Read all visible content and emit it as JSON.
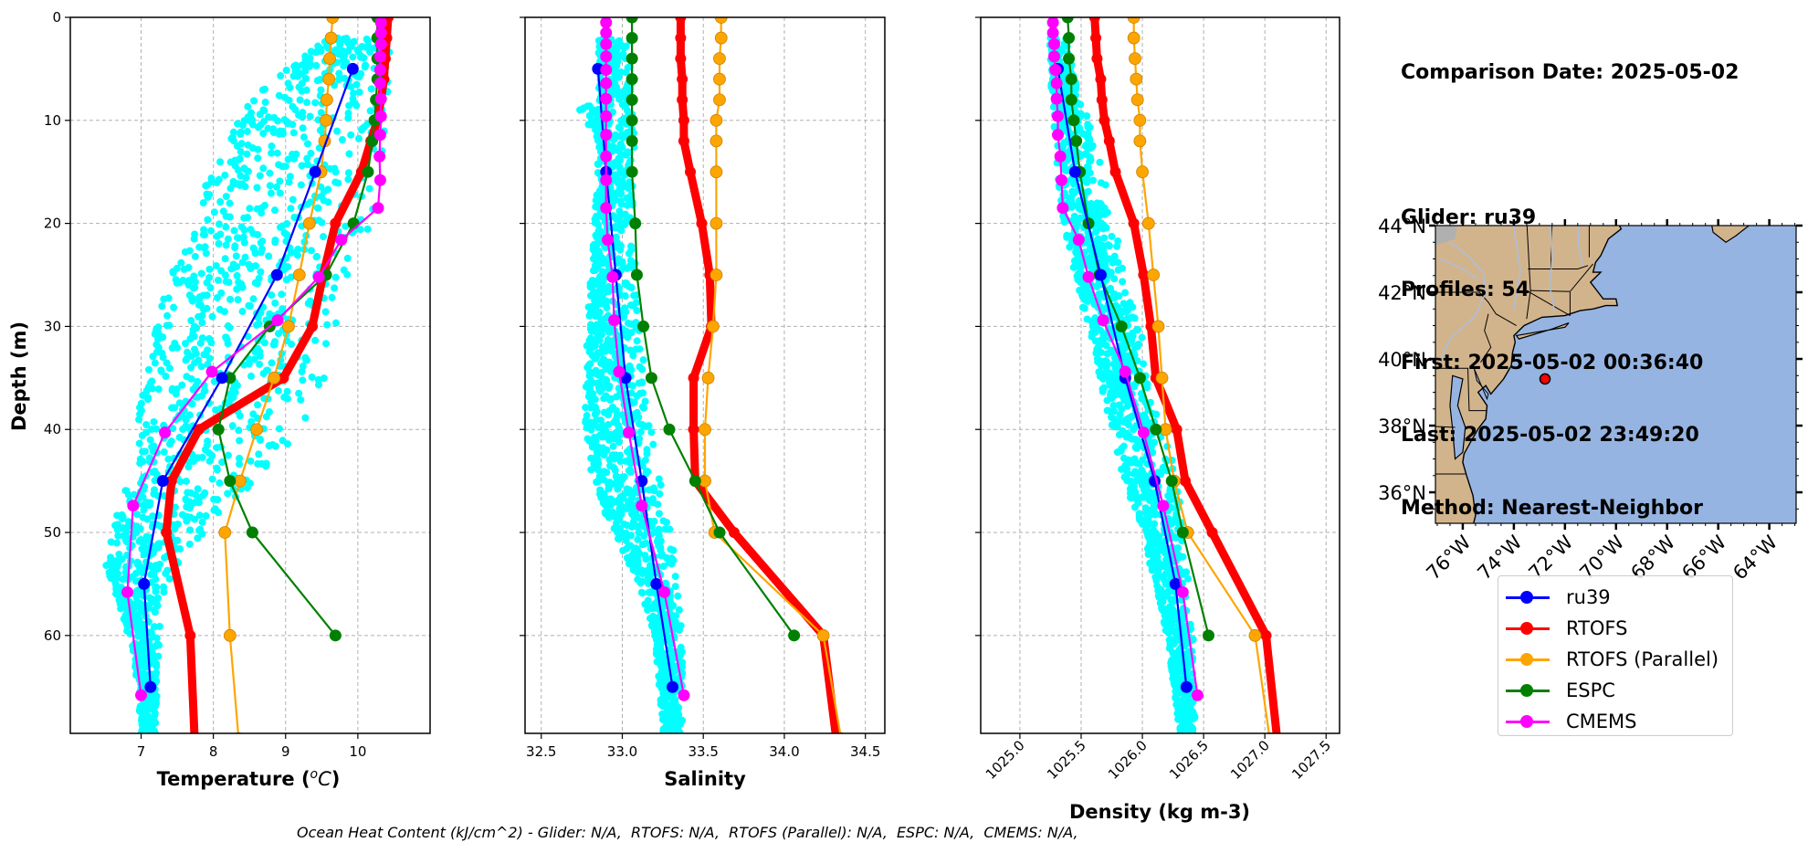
{
  "info": {
    "comparison_date": "Comparison Date: 2025-05-02",
    "glider": "Glider: ru39",
    "profiles": "Profiles: 54",
    "first": "First: 2025-05-02 00:36:40",
    "last": "Last: 2025-05-02 23:49:20",
    "method": "Method: Nearest-Neighbor"
  },
  "footer": "Ocean Heat Content (kJ/cm^2) - Glider: N/A,  RTOFS: N/A,  RTOFS (Parallel): N/A,  ESPC: N/A,  CMEMS: N/A,",
  "legend": [
    {
      "label": "ru39",
      "color": "#0000ff"
    },
    {
      "label": "RTOFS",
      "color": "#ff0000"
    },
    {
      "label": "RTOFS (Parallel)",
      "color": "#ffa500"
    },
    {
      "label": "ESPC",
      "color": "#008000"
    },
    {
      "label": "CMEMS",
      "color": "#ff00ff"
    }
  ],
  "colors": {
    "glider_scatter": "#00ffff",
    "ru39": "#0000ff",
    "RTOFS": "#ff0000",
    "RTOFS (Parallel)": "#ffa500",
    "ESPC": "#008000",
    "CMEMS": "#ff00ff",
    "land": "#d2b48c",
    "ocean": "#96b4e1",
    "lakes": "#b0b0b0"
  },
  "chart_data": [
    {
      "type": "line",
      "id": "temperature",
      "title": "",
      "xlabel": "Temperature (°C)",
      "xlabel_main": "Temperature (",
      "xlabel_unit": "oC",
      "ylabel": "Depth (m)",
      "xlim": [
        6.02,
        11.0
      ],
      "ylim": [
        69.5,
        0
      ],
      "xticks": [
        7,
        8,
        9,
        10
      ],
      "xtick_labels": [
        "7",
        "8",
        "9",
        "10"
      ],
      "yticks": [
        0,
        10,
        20,
        30,
        40,
        50,
        60
      ],
      "ytick_labels": [
        "0",
        "10",
        "20",
        "30",
        "40",
        "50",
        "60"
      ],
      "grid": true,
      "glider_scatter_envelope": [
        [
          2,
          9.6,
          10.45
        ],
        [
          5,
          9.0,
          10.45
        ],
        [
          8,
          8.5,
          10.45
        ],
        [
          12,
          8.2,
          10.4
        ],
        [
          16,
          7.9,
          10.3
        ],
        [
          20,
          7.8,
          10.2
        ],
        [
          25,
          7.4,
          9.95
        ],
        [
          30,
          7.2,
          9.8
        ],
        [
          35,
          7.0,
          9.6
        ],
        [
          40,
          6.9,
          9.3
        ],
        [
          45,
          6.8,
          8.6
        ],
        [
          50,
          6.6,
          7.9
        ],
        [
          53,
          6.5,
          7.6
        ],
        [
          57,
          6.7,
          7.3
        ],
        [
          62,
          6.9,
          7.25
        ],
        [
          69,
          7.0,
          7.2
        ]
      ],
      "series": [
        {
          "name": "ru39",
          "depth": [
            5,
            15,
            25,
            35,
            45,
            55,
            65
          ],
          "values": [
            9.93,
            9.41,
            8.88,
            8.12,
            7.3,
            7.04,
            7.13
          ]
        },
        {
          "name": "RTOFS",
          "depth": [
            0,
            2,
            4,
            6,
            8,
            10,
            12,
            15,
            20,
            25,
            30,
            35,
            40,
            45,
            50,
            60,
            70
          ],
          "values": [
            10.42,
            10.4,
            10.38,
            10.36,
            10.32,
            10.27,
            10.18,
            10.05,
            9.69,
            9.52,
            9.37,
            8.97,
            7.8,
            7.42,
            7.35,
            7.68,
            7.74
          ]
        },
        {
          "name": "RTOFS (Parallel)",
          "depth": [
            0,
            2,
            4,
            6,
            8,
            10,
            12,
            15,
            20,
            25,
            30,
            35,
            40,
            45,
            50,
            60,
            70
          ],
          "values": [
            9.65,
            9.63,
            9.61,
            9.6,
            9.57,
            9.56,
            9.54,
            9.49,
            9.33,
            9.19,
            9.04,
            8.84,
            8.6,
            8.37,
            8.16,
            8.23,
            8.35
          ]
        },
        {
          "name": "ESPC",
          "depth": [
            0,
            2,
            4,
            6,
            8,
            10,
            12,
            15,
            20,
            25,
            30,
            35,
            40,
            45,
            50,
            60
          ],
          "values": [
            10.27,
            10.27,
            10.27,
            10.27,
            10.25,
            10.23,
            10.2,
            10.14,
            9.94,
            9.56,
            8.78,
            8.23,
            8.07,
            8.23,
            8.54,
            9.69
          ]
        },
        {
          "name": "CMEMS",
          "depth": [
            0.5,
            1.5,
            2.6,
            3.8,
            5.1,
            6.4,
            7.9,
            9.6,
            11.4,
            13.5,
            15.8,
            18.5,
            21.6,
            25.2,
            29.4,
            34.4,
            40.3,
            47.4,
            55.8,
            65.8
          ],
          "values": [
            10.32,
            10.32,
            10.32,
            10.31,
            10.31,
            10.31,
            10.32,
            10.32,
            10.31,
            10.3,
            10.31,
            10.28,
            9.77,
            9.46,
            8.89,
            7.98,
            7.33,
            6.89,
            6.81,
            7.0
          ]
        }
      ]
    },
    {
      "type": "line",
      "id": "salinity",
      "xlabel": "Salinity",
      "ylabel": "",
      "xlim": [
        32.4,
        34.62
      ],
      "ylim": [
        69.5,
        0
      ],
      "xticks": [
        32.5,
        33.0,
        33.5,
        34.0,
        34.5
      ],
      "xtick_labels": [
        "32.5",
        "33.0",
        "33.5",
        "34.0",
        "34.5"
      ],
      "yticks": [
        0,
        10,
        20,
        30,
        40,
        50,
        60
      ],
      "grid": true,
      "glider_scatter_envelope": [
        [
          2,
          32.85,
          33.05
        ],
        [
          8,
          32.85,
          33.07
        ],
        [
          9,
          32.73,
          33.07
        ],
        [
          12,
          32.85,
          33.08
        ],
        [
          20,
          32.83,
          33.07
        ],
        [
          30,
          32.78,
          33.12
        ],
        [
          40,
          32.77,
          33.2
        ],
        [
          45,
          32.8,
          33.25
        ],
        [
          50,
          32.95,
          33.3
        ],
        [
          55,
          33.1,
          33.35
        ],
        [
          60,
          33.2,
          33.38
        ],
        [
          69,
          33.25,
          33.37
        ]
      ],
      "series": [
        {
          "name": "ru39",
          "depth": [
            5,
            15,
            25,
            35,
            45,
            55,
            65
          ],
          "values": [
            32.85,
            32.9,
            32.96,
            33.02,
            33.12,
            33.21,
            33.31
          ]
        },
        {
          "name": "RTOFS",
          "depth": [
            0,
            2,
            4,
            6,
            8,
            10,
            12,
            15,
            20,
            25,
            30,
            35,
            40,
            45,
            50,
            60,
            70
          ],
          "values": [
            33.36,
            33.36,
            33.36,
            33.37,
            33.37,
            33.38,
            33.38,
            33.42,
            33.49,
            33.54,
            33.55,
            33.44,
            33.44,
            33.45,
            33.69,
            34.24,
            34.32
          ]
        },
        {
          "name": "RTOFS (Parallel)",
          "depth": [
            0,
            2,
            4,
            6,
            8,
            10,
            12,
            15,
            20,
            25,
            30,
            35,
            40,
            45,
            50,
            60,
            70
          ],
          "values": [
            33.61,
            33.61,
            33.6,
            33.6,
            33.6,
            33.58,
            33.58,
            33.58,
            33.58,
            33.58,
            33.56,
            33.53,
            33.51,
            33.51,
            33.57,
            34.24,
            34.35
          ]
        },
        {
          "name": "ESPC",
          "depth": [
            0,
            2,
            4,
            6,
            8,
            10,
            12,
            15,
            20,
            25,
            30,
            35,
            40,
            45,
            50,
            60
          ],
          "values": [
            33.06,
            33.06,
            33.06,
            33.06,
            33.06,
            33.06,
            33.06,
            33.06,
            33.08,
            33.09,
            33.13,
            33.18,
            33.29,
            33.45,
            33.6,
            34.06
          ]
        },
        {
          "name": "CMEMS",
          "depth": [
            0.5,
            1.5,
            2.6,
            3.8,
            5.1,
            6.4,
            7.9,
            9.6,
            11.4,
            13.5,
            15.8,
            18.5,
            21.6,
            25.2,
            29.4,
            34.4,
            40.3,
            47.4,
            55.8,
            65.8
          ],
          "values": [
            32.9,
            32.9,
            32.9,
            32.9,
            32.9,
            32.9,
            32.9,
            32.9,
            32.9,
            32.9,
            32.9,
            32.9,
            32.91,
            32.94,
            32.95,
            32.98,
            33.04,
            33.12,
            33.26,
            33.38
          ]
        }
      ]
    },
    {
      "type": "line",
      "id": "density",
      "xlabel": "Density (kg m-3)",
      "ylabel": "",
      "xlim": [
        1024.68,
        1027.61
      ],
      "ylim": [
        69.5,
        0
      ],
      "xticks": [
        1025.0,
        1025.5,
        1026.0,
        1026.5,
        1027.0,
        1027.5
      ],
      "xtick_labels": [
        "1025.0",
        "1025.5",
        "1026.0",
        "1026.5",
        "1027.0",
        "1027.5"
      ],
      "xtick_rotation": 45,
      "yticks": [
        0,
        10,
        20,
        30,
        40,
        50,
        60
      ],
      "grid": true,
      "glider_scatter_envelope": [
        [
          2,
          1025.24,
          1025.4
        ],
        [
          8,
          1025.26,
          1025.5
        ],
        [
          12,
          1025.28,
          1025.62
        ],
        [
          20,
          1025.35,
          1025.78
        ],
        [
          25,
          1025.45,
          1025.85
        ],
        [
          30,
          1025.55,
          1026.0
        ],
        [
          35,
          1025.65,
          1026.05
        ],
        [
          40,
          1025.75,
          1026.2
        ],
        [
          45,
          1025.85,
          1026.28
        ],
        [
          50,
          1026.0,
          1026.35
        ],
        [
          60,
          1026.2,
          1026.42
        ],
        [
          69,
          1026.3,
          1026.43
        ]
      ],
      "series": [
        {
          "name": "ru39",
          "depth": [
            5,
            15,
            25,
            35,
            45,
            55,
            65
          ],
          "values": [
            1025.31,
            1025.45,
            1025.66,
            1025.86,
            1026.1,
            1026.27,
            1026.36
          ]
        },
        {
          "name": "RTOFS",
          "depth": [
            0,
            2,
            4,
            6,
            8,
            10,
            12,
            15,
            20,
            25,
            30,
            35,
            40,
            45,
            50,
            60,
            70
          ],
          "values": [
            1025.61,
            1025.62,
            1025.63,
            1025.66,
            1025.67,
            1025.69,
            1025.73,
            1025.78,
            1025.93,
            1026.01,
            1026.07,
            1026.11,
            1026.28,
            1026.35,
            1026.57,
            1027.01,
            1027.1
          ]
        },
        {
          "name": "RTOFS (Parallel)",
          "depth": [
            0,
            2,
            4,
            6,
            8,
            10,
            12,
            15,
            20,
            25,
            30,
            35,
            40,
            45,
            50,
            60,
            70
          ],
          "values": [
            1025.93,
            1025.93,
            1025.94,
            1025.95,
            1025.96,
            1025.98,
            1025.98,
            1026.0,
            1026.05,
            1026.09,
            1026.13,
            1026.16,
            1026.19,
            1026.26,
            1026.37,
            1026.92,
            1027.04
          ]
        },
        {
          "name": "ESPC",
          "depth": [
            0,
            2,
            4,
            6,
            8,
            10,
            12,
            15,
            20,
            25,
            30,
            35,
            40,
            45,
            50,
            60
          ],
          "values": [
            1025.39,
            1025.4,
            1025.4,
            1025.42,
            1025.42,
            1025.44,
            1025.46,
            1025.49,
            1025.56,
            1025.65,
            1025.83,
            1025.98,
            1026.11,
            1026.24,
            1026.33,
            1026.54
          ]
        },
        {
          "name": "CMEMS",
          "depth": [
            0.5,
            1.5,
            2.6,
            3.8,
            5.1,
            6.4,
            7.9,
            9.6,
            11.4,
            13.5,
            15.8,
            18.5,
            21.6,
            25.2,
            29.4,
            34.4,
            40.3,
            47.4,
            55.8,
            65.8
          ],
          "values": [
            1025.27,
            1025.27,
            1025.28,
            1025.28,
            1025.29,
            1025.3,
            1025.3,
            1025.31,
            1025.31,
            1025.33,
            1025.34,
            1025.35,
            1025.48,
            1025.56,
            1025.68,
            1025.86,
            1026.01,
            1026.17,
            1026.33,
            1026.45
          ]
        }
      ]
    },
    {
      "type": "map",
      "id": "location-map",
      "lon_range": [
        -77.07,
        -62.95
      ],
      "lat_range": [
        35.07,
        44.0
      ],
      "lat_ticks": [
        36,
        38,
        40,
        42,
        44
      ],
      "lat_tick_labels": [
        "36°N",
        "38°N",
        "40°N",
        "42°N",
        "44°N"
      ],
      "lon_ticks": [
        -76,
        -74,
        -72,
        -70,
        -68,
        -66,
        -64
      ],
      "lon_tick_labels": [
        "76°W",
        "74°W",
        "72°W",
        "70°W",
        "68°W",
        "66°W",
        "64°W"
      ],
      "glider_position": {
        "lon": -72.78,
        "lat": 39.4
      }
    }
  ]
}
